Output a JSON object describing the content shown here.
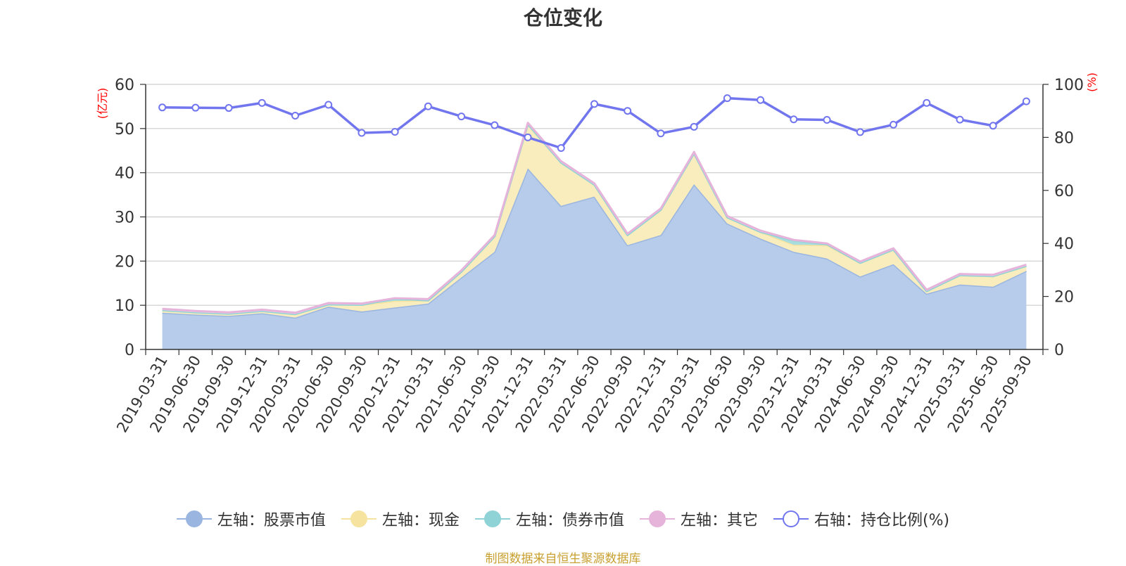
{
  "chart_data": {
    "type": "area",
    "title": "仓位变化",
    "source": "制图数据来自恒生聚源数据库",
    "y_left_label": "(亿元)",
    "y_right_label": "(%)",
    "y_left_lim": [
      0,
      60
    ],
    "y_left_ticks": [
      0,
      10,
      20,
      30,
      40,
      50,
      60
    ],
    "y_right_lim": [
      0,
      100
    ],
    "y_right_ticks": [
      0,
      20,
      40,
      60,
      80,
      100
    ],
    "grid": true,
    "legend_position": "bottom",
    "categories": [
      "2019-03-31",
      "2019-06-30",
      "2019-09-30",
      "2019-12-31",
      "2020-03-31",
      "2020-06-30",
      "2020-09-30",
      "2020-12-31",
      "2021-03-31",
      "2021-06-30",
      "2021-09-30",
      "2021-12-31",
      "2022-03-31",
      "2022-06-30",
      "2022-09-30",
      "2022-12-31",
      "2023-03-31",
      "2023-06-30",
      "2023-09-30",
      "2023-12-31",
      "2024-03-31",
      "2024-06-30",
      "2024-09-30",
      "2024-12-31",
      "2025-03-31",
      "2025-06-30",
      "2025-09-30"
    ],
    "series": [
      {
        "name": "左轴：股票市值",
        "axis": "left",
        "kind": "stacked-area",
        "color": "#9ab6e0",
        "fill": "#b7cbea",
        "values": [
          8.3,
          7.9,
          7.6,
          8.2,
          7.2,
          9.7,
          8.6,
          9.5,
          10.4,
          16.3,
          22.1,
          41.0,
          32.5,
          34.6,
          23.6,
          25.9,
          37.4,
          28.5,
          25.1,
          22.1,
          20.6,
          16.5,
          19.3,
          12.6,
          14.7,
          14.2,
          17.8
        ]
      },
      {
        "name": "左轴：现金",
        "axis": "left",
        "kind": "stacked-area",
        "color": "#f6e3a0",
        "fill": "#f9ecbd",
        "values": [
          0.6,
          0.5,
          0.5,
          0.5,
          0.8,
          0.5,
          1.5,
          1.5,
          0.7,
          1.3,
          3.5,
          10.0,
          9.8,
          2.7,
          2.3,
          5.7,
          7.0,
          1.4,
          1.5,
          1.6,
          3.0,
          3.1,
          3.3,
          0.6,
          2.1,
          2.4,
          1.1
        ]
      },
      {
        "name": "左轴：债券市值",
        "axis": "left",
        "kind": "stacked-area",
        "color": "#8fd3d6",
        "fill": "#a9dcdc",
        "values": [
          0,
          0,
          0,
          0,
          0,
          0,
          0,
          0.5,
          0,
          0,
          0,
          0,
          0,
          0,
          0,
          0,
          0,
          0,
          0,
          1.0,
          0.2,
          0,
          0,
          0,
          0,
          0,
          0
        ]
      },
      {
        "name": "左轴：其它",
        "axis": "left",
        "kind": "stacked-area",
        "color": "#e6b4da",
        "fill": "#f1d3ea",
        "values": [
          0.3,
          0.3,
          0.3,
          0.3,
          0.3,
          0.3,
          0.3,
          0.1,
          0.3,
          0.3,
          0.3,
          0.3,
          0.3,
          0.3,
          0.3,
          0.3,
          0.3,
          0.3,
          0.3,
          0.1,
          0.2,
          0.3,
          0.3,
          0.3,
          0.3,
          0.3,
          0.3
        ]
      },
      {
        "name": "右轴：持仓比例(%)",
        "axis": "right",
        "kind": "line",
        "color": "#7276ee",
        "values": [
          91.3,
          91.2,
          91.1,
          93.0,
          88.2,
          92.3,
          81.7,
          82.1,
          91.7,
          87.9,
          84.6,
          80.0,
          76.0,
          92.6,
          90.0,
          81.5,
          84.0,
          94.8,
          94.1,
          86.8,
          86.6,
          82.0,
          84.8,
          93.0,
          86.7,
          84.4,
          93.6
        ]
      }
    ]
  }
}
